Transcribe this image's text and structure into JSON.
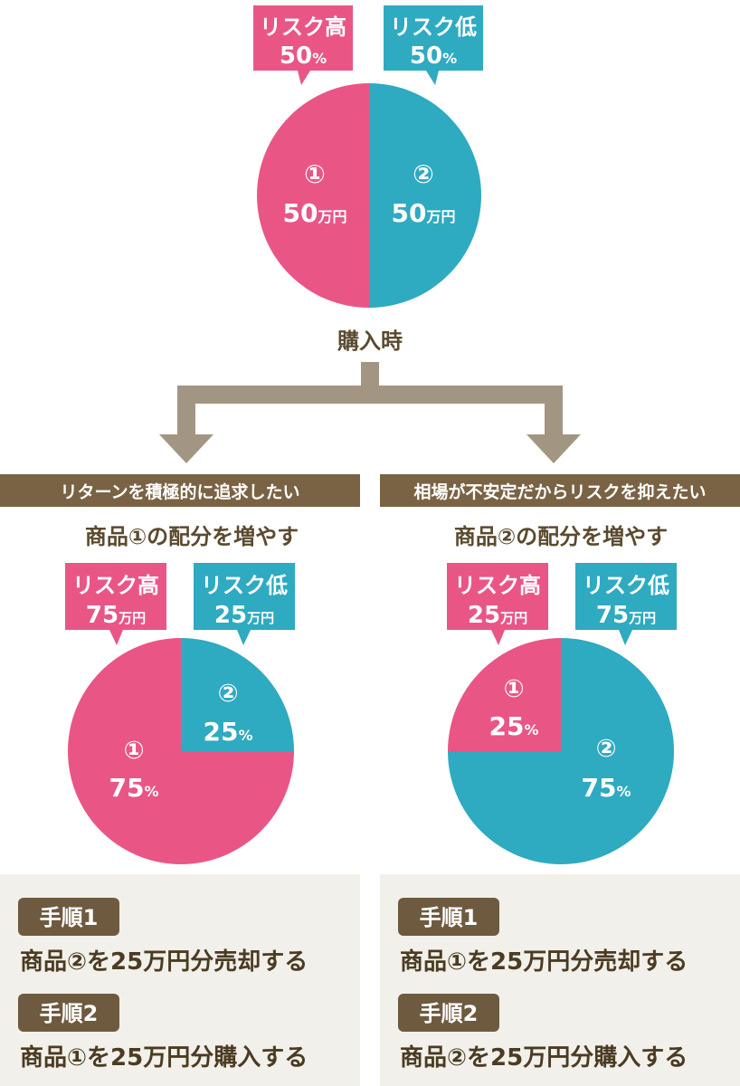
{
  "colors": {
    "high": "#e95686",
    "low": "#2eaac1",
    "arrow": "#a29683",
    "banner": "#7a6344",
    "panel": "#f2f0ea",
    "badge": "#6e5a3f",
    "text_dark": "#4a3b22"
  },
  "chart_data": [
    {
      "type": "pie",
      "title": "購入時",
      "slices": [
        {
          "product": "①",
          "value": 50,
          "value_label": "50",
          "unit": "万円"
        },
        {
          "product": "②",
          "value": 50,
          "value_label": "50",
          "unit": "万円"
        }
      ],
      "callouts": [
        {
          "title": "リスク高",
          "value": "50",
          "unit": "%"
        },
        {
          "title": "リスク低",
          "value": "50",
          "unit": "%"
        }
      ]
    },
    {
      "type": "pie",
      "title": "商品①の配分を増やす",
      "banner": "リターンを積極的に追求したい",
      "slices": [
        {
          "product": "①",
          "value": 75,
          "value_label": "75",
          "unit": "%"
        },
        {
          "product": "②",
          "value": 25,
          "value_label": "25",
          "unit": "%"
        }
      ],
      "callouts": [
        {
          "title": "リスク高",
          "value": "75",
          "unit": "万円"
        },
        {
          "title": "リスク低",
          "value": "25",
          "unit": "万円"
        }
      ]
    },
    {
      "type": "pie",
      "title": "商品②の配分を増やす",
      "banner": "相場が不安定だからリスクを抑えたい",
      "slices": [
        {
          "product": "①",
          "value": 25,
          "value_label": "25",
          "unit": "%"
        },
        {
          "product": "②",
          "value": 75,
          "value_label": "75",
          "unit": "%"
        }
      ],
      "callouts": [
        {
          "title": "リスク高",
          "value": "25",
          "unit": "万円"
        },
        {
          "title": "リスク低",
          "value": "75",
          "unit": "万円"
        }
      ]
    }
  ],
  "steps": [
    {
      "step1_label": "手順1",
      "step1_text": "商品②を25万円分売却する",
      "step2_label": "手順2",
      "step2_text": "商品①を25万円分購入する"
    },
    {
      "step1_label": "手順1",
      "step1_text": "商品①を25万円分売却する",
      "step2_label": "手順2",
      "step2_text": "商品②を25万円分購入する"
    }
  ]
}
